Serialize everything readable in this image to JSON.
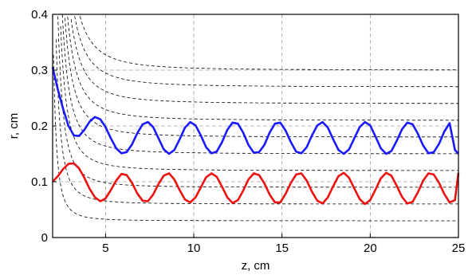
{
  "chart_data": {
    "type": "line",
    "title": "",
    "xlabel": "z, cm",
    "ylabel": "r, cm",
    "xlim": [
      2,
      25
    ],
    "ylim": [
      0,
      0.4
    ],
    "x_ticks": [
      5,
      10,
      15,
      20,
      25
    ],
    "x_tick_labels": [
      "5",
      "10",
      "15",
      "20",
      "25"
    ],
    "y_ticks": [
      0,
      0.1,
      0.2,
      0.3,
      0.4
    ],
    "y_tick_labels": [
      "0",
      "0.1",
      "0.2",
      "0.3",
      "0.4"
    ],
    "grid": true,
    "legend": "none",
    "series": [
      {
        "color": "#1a1aff",
        "style": "solid",
        "points": [
          [
            2.0,
            0.305
          ],
          [
            2.3,
            0.265
          ],
          [
            2.6,
            0.23
          ],
          [
            2.9,
            0.2
          ],
          [
            3.2,
            0.183
          ],
          [
            3.5,
            0.182
          ],
          [
            3.8,
            0.193
          ],
          [
            4.1,
            0.208
          ],
          [
            4.4,
            0.216
          ],
          [
            4.7,
            0.212
          ],
          [
            5.0,
            0.198
          ],
          [
            5.3,
            0.178
          ],
          [
            5.6,
            0.16
          ],
          [
            5.9,
            0.151
          ],
          [
            6.2,
            0.153
          ],
          [
            6.5,
            0.167
          ],
          [
            6.8,
            0.187
          ],
          [
            7.1,
            0.203
          ],
          [
            7.4,
            0.207
          ],
          [
            7.7,
            0.198
          ],
          [
            8.0,
            0.178
          ],
          [
            8.3,
            0.158
          ],
          [
            8.6,
            0.15
          ],
          [
            8.9,
            0.157
          ],
          [
            9.2,
            0.176
          ],
          [
            9.5,
            0.197
          ],
          [
            9.8,
            0.207
          ],
          [
            10.1,
            0.201
          ],
          [
            10.4,
            0.183
          ],
          [
            10.7,
            0.162
          ],
          [
            11.0,
            0.151
          ],
          [
            11.3,
            0.154
          ],
          [
            11.6,
            0.171
          ],
          [
            11.9,
            0.193
          ],
          [
            12.2,
            0.206
          ],
          [
            12.5,
            0.204
          ],
          [
            12.8,
            0.188
          ],
          [
            13.1,
            0.166
          ],
          [
            13.4,
            0.152
          ],
          [
            13.7,
            0.153
          ],
          [
            14.0,
            0.166
          ],
          [
            14.3,
            0.188
          ],
          [
            14.6,
            0.204
          ],
          [
            14.9,
            0.206
          ],
          [
            15.2,
            0.192
          ],
          [
            15.5,
            0.171
          ],
          [
            15.8,
            0.154
          ],
          [
            16.1,
            0.151
          ],
          [
            16.4,
            0.162
          ],
          [
            16.7,
            0.183
          ],
          [
            17.0,
            0.201
          ],
          [
            17.3,
            0.207
          ],
          [
            17.6,
            0.197
          ],
          [
            17.9,
            0.176
          ],
          [
            18.2,
            0.157
          ],
          [
            18.5,
            0.15
          ],
          [
            18.8,
            0.158
          ],
          [
            19.1,
            0.178
          ],
          [
            19.4,
            0.198
          ],
          [
            19.7,
            0.207
          ],
          [
            20.0,
            0.201
          ],
          [
            20.3,
            0.181
          ],
          [
            20.6,
            0.16
          ],
          [
            20.9,
            0.15
          ],
          [
            21.2,
            0.155
          ],
          [
            21.5,
            0.173
          ],
          [
            21.8,
            0.194
          ],
          [
            22.1,
            0.206
          ],
          [
            22.4,
            0.203
          ],
          [
            22.7,
            0.186
          ],
          [
            23.0,
            0.165
          ],
          [
            23.3,
            0.151
          ],
          [
            23.6,
            0.153
          ],
          [
            23.9,
            0.168
          ],
          [
            24.2,
            0.19
          ],
          [
            24.5,
            0.205
          ],
          [
            24.8,
            0.157
          ],
          [
            25.0,
            0.15
          ]
        ]
      },
      {
        "color": "#ee1111",
        "style": "solid",
        "points": [
          [
            2.0,
            0.1
          ],
          [
            2.3,
            0.11
          ],
          [
            2.6,
            0.123
          ],
          [
            2.9,
            0.132
          ],
          [
            3.2,
            0.133
          ],
          [
            3.5,
            0.124
          ],
          [
            3.8,
            0.107
          ],
          [
            4.1,
            0.087
          ],
          [
            4.4,
            0.072
          ],
          [
            4.7,
            0.065
          ],
          [
            5.0,
            0.07
          ],
          [
            5.3,
            0.085
          ],
          [
            5.6,
            0.102
          ],
          [
            5.9,
            0.114
          ],
          [
            6.2,
            0.112
          ],
          [
            6.5,
            0.098
          ],
          [
            6.8,
            0.079
          ],
          [
            7.1,
            0.066
          ],
          [
            7.4,
            0.065
          ],
          [
            7.7,
            0.077
          ],
          [
            8.0,
            0.096
          ],
          [
            8.3,
            0.111
          ],
          [
            8.6,
            0.115
          ],
          [
            8.9,
            0.104
          ],
          [
            9.2,
            0.085
          ],
          [
            9.5,
            0.068
          ],
          [
            9.8,
            0.063
          ],
          [
            10.1,
            0.072
          ],
          [
            10.4,
            0.09
          ],
          [
            10.7,
            0.108
          ],
          [
            11.0,
            0.115
          ],
          [
            11.3,
            0.109
          ],
          [
            11.6,
            0.091
          ],
          [
            11.9,
            0.072
          ],
          [
            12.2,
            0.062
          ],
          [
            12.5,
            0.067
          ],
          [
            12.8,
            0.084
          ],
          [
            13.1,
            0.104
          ],
          [
            13.4,
            0.115
          ],
          [
            13.7,
            0.112
          ],
          [
            14.0,
            0.097
          ],
          [
            14.3,
            0.077
          ],
          [
            14.6,
            0.063
          ],
          [
            14.9,
            0.063
          ],
          [
            15.2,
            0.078
          ],
          [
            15.5,
            0.098
          ],
          [
            15.8,
            0.113
          ],
          [
            16.1,
            0.115
          ],
          [
            16.4,
            0.102
          ],
          [
            16.7,
            0.082
          ],
          [
            17.0,
            0.066
          ],
          [
            17.3,
            0.061
          ],
          [
            17.6,
            0.072
          ],
          [
            17.9,
            0.092
          ],
          [
            18.2,
            0.11
          ],
          [
            18.5,
            0.116
          ],
          [
            18.8,
            0.107
          ],
          [
            19.1,
            0.088
          ],
          [
            19.4,
            0.069
          ],
          [
            19.7,
            0.06
          ],
          [
            20.0,
            0.067
          ],
          [
            20.3,
            0.086
          ],
          [
            20.6,
            0.106
          ],
          [
            20.9,
            0.116
          ],
          [
            21.2,
            0.111
          ],
          [
            21.5,
            0.093
          ],
          [
            21.8,
            0.073
          ],
          [
            22.1,
            0.061
          ],
          [
            22.4,
            0.064
          ],
          [
            22.7,
            0.081
          ],
          [
            23.0,
            0.102
          ],
          [
            23.3,
            0.115
          ],
          [
            23.6,
            0.113
          ],
          [
            23.9,
            0.098
          ],
          [
            24.2,
            0.078
          ],
          [
            24.5,
            0.063
          ],
          [
            24.8,
            0.067
          ],
          [
            25.0,
            0.116
          ]
        ]
      }
    ],
    "background_curves": {
      "color": "#000000",
      "style": "dashed",
      "asymptotes": [
        0.03,
        0.06,
        0.09,
        0.12,
        0.15,
        0.18,
        0.21,
        0.24,
        0.27,
        0.3
      ],
      "z_shape": 1.1
    }
  }
}
